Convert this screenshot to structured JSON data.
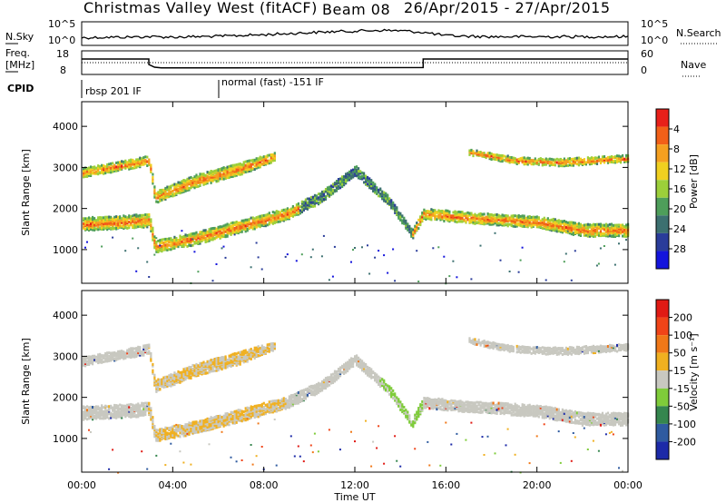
{
  "chart_data": {
    "title": {
      "radar": "Christmas Valley West (fitACF)",
      "beam": "Beam 08",
      "dates": "26/Apr/2015 - 27/Apr/2015"
    },
    "x_axis": {
      "label": "Time UT",
      "range_hours": [
        0,
        24
      ],
      "ticks": [
        "00:00",
        "04:00",
        "08:00",
        "12:00",
        "16:00",
        "20:00",
        "00:00"
      ]
    },
    "top_panels": [
      {
        "type": "line",
        "left_label": "N.Sky",
        "left_ticks": [
          "10^5",
          "10^0"
        ],
        "right_ticks": [
          "10^5",
          "10^0"
        ],
        "right_label": "N.Search",
        "series": [
          {
            "x": [
              0,
              1,
              2,
              3,
              4,
              5,
              6,
              7,
              8,
              9,
              10,
              11,
              12,
              13,
              14,
              15,
              16,
              17,
              18,
              19,
              20,
              21,
              22,
              23,
              24
            ],
            "y_level": [
              0.25,
              0.27,
              0.28,
              0.3,
              0.28,
              0.3,
              0.32,
              0.36,
              0.4,
              0.45,
              0.5,
              0.55,
              0.58,
              0.62,
              0.6,
              0.52,
              0.35,
              0.32,
              0.3,
              0.3,
              0.3,
              0.3,
              0.3,
              0.3,
              0.3
            ]
          }
        ]
      },
      {
        "type": "line",
        "left_label": "Freq.",
        "left_unit": "[MHz]",
        "left_ticks": [
          18,
          8
        ],
        "right_ticks": [
          60,
          0
        ],
        "right_label": "Nave",
        "series": [
          {
            "name": "freq",
            "x": [
              0,
              2.95,
              2.95,
              3.2,
              3.5,
              15,
              15,
              24
            ],
            "y": [
              15.5,
              15.5,
              12.5,
              11,
              10.6,
              10.8,
              15.5,
              15.5
            ]
          },
          {
            "name": "nave",
            "x": [
              0,
              24
            ],
            "y": [
              30,
              30
            ]
          }
        ]
      }
    ],
    "cpid": {
      "label": "CPID",
      "segments": [
        {
          "text": "rbsp 201 IF",
          "start": 0,
          "end": 6
        },
        {
          "text": "normal (fast) -151 IF",
          "start": 6,
          "end": 24
        }
      ]
    },
    "panels": [
      {
        "type": "heatmap",
        "name": "power",
        "ylabel": "Slant Range [km]",
        "y_ticks": [
          1000,
          2000,
          3000,
          4000
        ],
        "ylim": [
          180,
          4600
        ],
        "colorbar": {
          "label": "Power [dB]",
          "ticks": [
            "4",
            "8",
            "12",
            "16",
            "20",
            "24",
            "28"
          ],
          "colors": [
            "#1414dc",
            "#2a3c9a",
            "#3c7070",
            "#4e9e5a",
            "#9ccf3a",
            "#f0d020",
            "#f5a020",
            "#f26018",
            "#e8201a"
          ]
        }
      },
      {
        "type": "heatmap",
        "name": "velocity",
        "ylabel": "Slant Range [km]",
        "y_ticks": [
          1000,
          2000,
          3000,
          4000
        ],
        "ylim": [
          180,
          4600
        ],
        "colorbar": {
          "label": "Velocity [m s⁻¹]",
          "ticks": [
            "200",
            "100",
            "50",
            "15",
            "-15",
            "-50",
            "-100",
            "-200"
          ],
          "colors": [
            "#1c2aa8",
            "#2f5ba0",
            "#35864e",
            "#7fcc3a",
            "#c8c8c0",
            "#f0b020",
            "#f07818",
            "#f04418",
            "#e01a14"
          ]
        }
      }
    ],
    "echo_bands": [
      {
        "t": [
          0,
          2,
          2.95,
          3.2,
          5,
          7,
          9,
          10.5,
          12,
          13.5,
          14.5,
          15,
          17,
          20,
          22,
          24
        ],
        "r": [
          1650,
          1700,
          1750,
          1100,
          1300,
          1600,
          1900,
          2300,
          2950,
          2200,
          1400,
          1900,
          1800,
          1700,
          1500,
          1500
        ],
        "w": [
          320,
          320,
          320,
          280,
          300,
          300,
          280,
          260,
          240,
          220,
          200,
          260,
          260,
          280,
          300,
          300
        ],
        "kind": "main"
      },
      {
        "t": [
          0,
          2,
          2.95,
          3.2,
          5,
          7,
          8.5
        ],
        "r": [
          2900,
          3100,
          3200,
          2300,
          2700,
          3000,
          3300
        ],
        "w": [
          220,
          220,
          240,
          280,
          300,
          300,
          200
        ],
        "kind": "upper"
      },
      {
        "t": [
          17,
          19,
          21,
          24
        ],
        "r": [
          3400,
          3200,
          3150,
          3250
        ],
        "w": [
          140,
          160,
          180,
          160
        ],
        "kind": "late"
      }
    ]
  }
}
